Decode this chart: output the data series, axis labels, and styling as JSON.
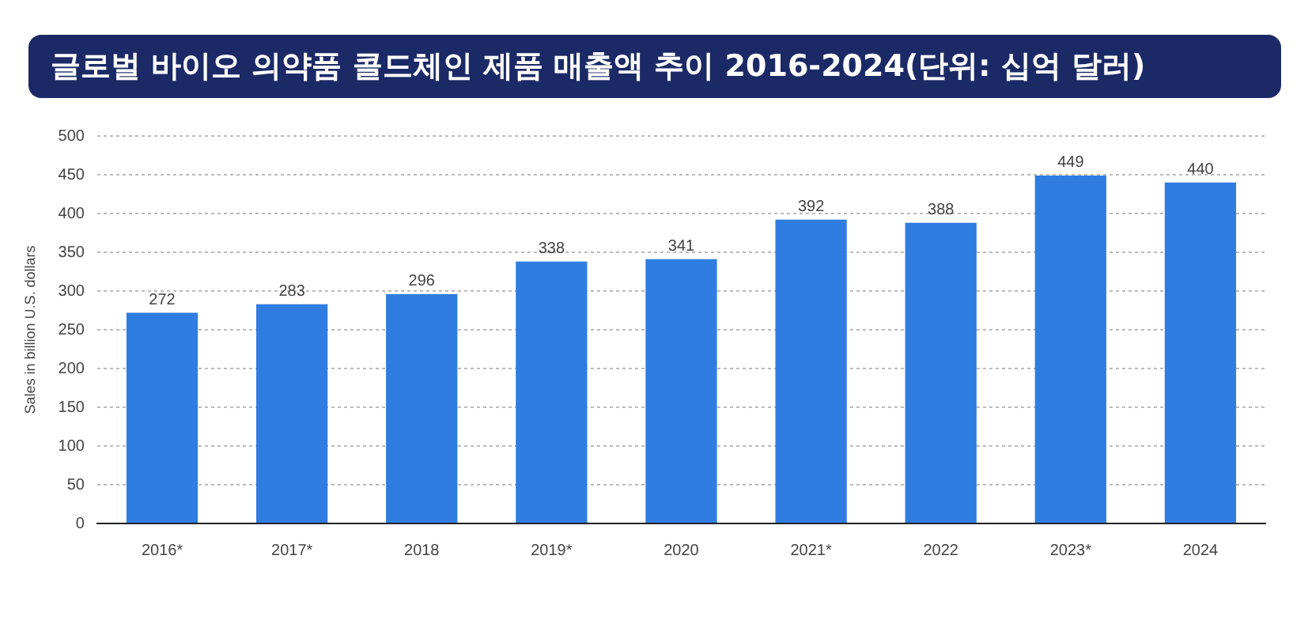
{
  "chart_data": {
    "type": "bar",
    "title": "글로벌 바이오 의약품 콜드체인 제품 매출액 추이 2016-2024(단위: 십억 달러)",
    "ylabel": "Sales in billion U.S. dollars",
    "categories": [
      "2016*",
      "2017*",
      "2018",
      "2019*",
      "2020",
      "2021*",
      "2022",
      "2023*",
      "2024"
    ],
    "values": [
      272,
      283,
      296,
      338,
      341,
      392,
      388,
      449,
      440
    ],
    "color": "#2f7de1",
    "ylim": [
      0,
      500
    ],
    "yticks": [
      0,
      50,
      100,
      150,
      200,
      250,
      300,
      350,
      400,
      450,
      500
    ],
    "grid": "y",
    "data_labels": true
  }
}
